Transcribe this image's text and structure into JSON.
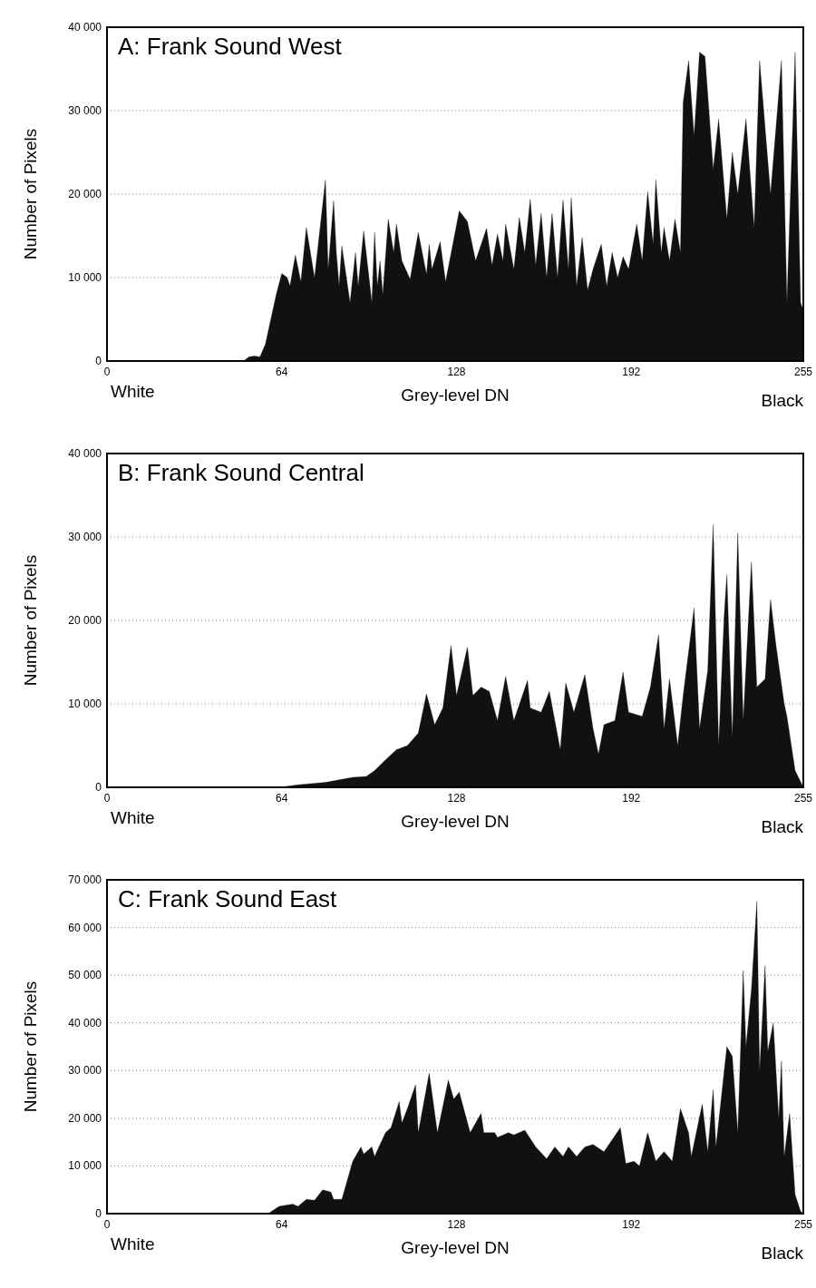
{
  "chart_data": [
    {
      "type": "area",
      "title": "A: Frank Sound West",
      "xlabel": "Grey-level DN",
      "ylabel": "Number of Pixels",
      "annotations": [
        "White",
        "Black"
      ],
      "xlim": [
        0,
        255
      ],
      "xticks": [
        0,
        64,
        128,
        192,
        255
      ],
      "ylim": [
        0,
        40000
      ],
      "yticks": [
        {
          "value": 0,
          "label": "0"
        },
        {
          "value": 10000,
          "label": "10 000"
        },
        {
          "value": 20000,
          "label": "20 000"
        },
        {
          "value": 30000,
          "label": "30 000"
        },
        {
          "value": 40000,
          "label": "40 000"
        }
      ],
      "grid": "y",
      "series": [
        {
          "color": "#111111",
          "x": [
            0,
            50,
            52,
            54,
            56,
            58,
            60,
            62,
            64,
            66,
            67,
            69,
            71,
            73,
            76,
            80,
            81,
            83,
            84,
            85,
            86,
            89,
            91,
            92,
            94,
            97,
            98,
            99,
            100,
            101,
            103,
            105,
            106,
            108,
            111,
            114,
            117,
            118,
            119,
            122,
            124,
            129,
            132,
            135,
            139,
            141,
            143,
            145,
            146,
            149,
            151,
            153,
            155,
            157,
            159,
            161,
            163,
            165,
            167,
            169,
            170,
            172,
            174,
            176,
            178,
            181,
            183,
            185,
            187,
            189,
            191,
            194,
            196,
            198,
            200,
            201,
            203,
            204,
            206,
            208,
            210,
            211,
            213,
            215,
            217,
            219,
            222,
            224,
            227,
            229,
            231,
            234,
            237,
            239,
            243,
            247,
            249,
            252,
            254,
            255
          ],
          "values": [
            0,
            0,
            500,
            600,
            500,
            2000,
            5000,
            8000,
            10500,
            10000,
            9000,
            12700,
            9500,
            16000,
            10000,
            21700,
            11000,
            19200,
            13000,
            9000,
            13800,
            7000,
            13000,
            9000,
            15600,
            7000,
            15400,
            9000,
            12000,
            8000,
            17000,
            13000,
            16400,
            12000,
            9800,
            15400,
            10400,
            14000,
            11000,
            14300,
            9500,
            18000,
            16700,
            12000,
            15900,
            11500,
            15200,
            12000,
            16400,
            11000,
            17200,
            13000,
            19400,
            11500,
            17700,
            10000,
            17700,
            10000,
            19300,
            11000,
            19600,
            9000,
            14800,
            8500,
            11000,
            14000,
            9000,
            13000,
            10000,
            12500,
            11000,
            16400,
            12000,
            20300,
            14000,
            21700,
            13000,
            16000,
            12000,
            17000,
            13000,
            31000,
            36000,
            27000,
            37000,
            36500,
            23000,
            29000,
            17000,
            25000,
            20000,
            29000,
            16000,
            36000,
            20000,
            36000,
            7000,
            37000,
            7000,
            6000
          ]
        }
      ]
    },
    {
      "type": "area",
      "title": "B: Frank Sound Central",
      "xlabel": "Grey-level DN",
      "ylabel": "Number of Pixels",
      "annotations": [
        "White",
        "Black"
      ],
      "xlim": [
        0,
        255
      ],
      "xticks": [
        0,
        64,
        128,
        192,
        255
      ],
      "ylim": [
        0,
        40000
      ],
      "yticks": [
        {
          "value": 0,
          "label": "0"
        },
        {
          "value": 10000,
          "label": "10 000"
        },
        {
          "value": 20000,
          "label": "20 000"
        },
        {
          "value": 30000,
          "label": "30 000"
        },
        {
          "value": 40000,
          "label": "40 000"
        }
      ],
      "grid": "y",
      "series": [
        {
          "color": "#111111",
          "x": [
            0,
            63,
            70,
            80,
            90,
            95,
            98,
            102,
            106,
            110,
            114,
            117,
            120,
            123,
            126,
            128,
            132,
            134,
            137,
            140,
            143,
            146,
            149,
            154,
            155,
            159,
            162,
            164,
            166,
            168,
            171,
            175,
            178,
            180,
            182,
            186,
            189,
            191,
            196,
            199,
            202,
            204,
            206,
            209,
            211,
            215,
            217,
            220,
            222,
            224,
            226,
            227,
            229,
            231,
            233,
            236,
            238,
            241,
            243,
            245,
            248,
            249,
            252,
            255
          ],
          "values": [
            0,
            0,
            300,
            600,
            1200,
            1300,
            2000,
            3300,
            4500,
            5000,
            6500,
            11200,
            7500,
            9500,
            17000,
            11000,
            16800,
            11000,
            12000,
            11500,
            8000,
            13300,
            8000,
            12800,
            9500,
            9000,
            11500,
            8000,
            4500,
            12500,
            9000,
            13500,
            7000,
            4000,
            7500,
            8000,
            13800,
            9000,
            8500,
            12000,
            18300,
            7000,
            13000,
            5000,
            11000,
            21500,
            7000,
            14000,
            31500,
            5000,
            20500,
            25500,
            6000,
            30500,
            8000,
            27000,
            12000,
            13000,
            22500,
            17000,
            10000,
            8500,
            2000,
            0
          ]
        }
      ]
    },
    {
      "type": "area",
      "title": "C: Frank Sound East",
      "xlabel": "Grey-level DN",
      "ylabel": "Number of Pixels",
      "annotations": [
        "White",
        "Black"
      ],
      "xlim": [
        0,
        255
      ],
      "xticks": [
        0,
        64,
        128,
        192,
        255
      ],
      "ylim": [
        0,
        70000
      ],
      "yticks": [
        {
          "value": 0,
          "label": "0"
        },
        {
          "value": 10000,
          "label": "10 000"
        },
        {
          "value": 20000,
          "label": "20 000"
        },
        {
          "value": 30000,
          "label": "30 000"
        },
        {
          "value": 40000,
          "label": "40 000"
        },
        {
          "value": 50000,
          "label": "50 000"
        },
        {
          "value": 60000,
          "label": "60 000"
        },
        {
          "value": 70000,
          "label": "70 000"
        }
      ],
      "grid": "y",
      "series": [
        {
          "color": "#111111",
          "x": [
            0,
            59,
            63,
            68,
            70,
            73,
            76,
            79,
            82,
            83,
            86,
            90,
            93,
            94,
            97,
            98,
            102,
            104,
            107,
            108,
            110,
            113,
            114,
            118,
            121,
            125,
            127,
            129,
            133,
            137,
            138,
            142,
            143,
            147,
            149,
            153,
            157,
            161,
            164,
            167,
            169,
            172,
            175,
            178,
            182,
            188,
            190,
            193,
            195,
            198,
            201,
            204,
            207,
            210,
            213,
            214,
            218,
            220,
            222,
            223,
            227,
            229,
            231,
            233,
            234,
            236,
            238,
            239,
            241,
            242,
            244,
            246,
            247,
            248,
            250,
            252,
            254,
            255
          ],
          "values": [
            0,
            0,
            1500,
            2000,
            1500,
            3000,
            2800,
            5000,
            4500,
            3000,
            3000,
            11000,
            14000,
            12500,
            14000,
            12000,
            17000,
            18000,
            23500,
            19000,
            22000,
            27000,
            17000,
            29500,
            17000,
            28000,
            24000,
            25500,
            17000,
            21000,
            17000,
            17000,
            16000,
            17000,
            16500,
            17500,
            14000,
            11500,
            14000,
            12000,
            14000,
            12000,
            14000,
            14500,
            13000,
            18000,
            10500,
            11000,
            10000,
            17000,
            11000,
            13000,
            11000,
            22000,
            17000,
            12000,
            23000,
            13000,
            26000,
            14000,
            35000,
            33000,
            17000,
            51000,
            35000,
            47000,
            65500,
            30000,
            52000,
            34000,
            40000,
            20000,
            32000,
            12000,
            21000,
            4000,
            500,
            0
          ]
        }
      ]
    }
  ]
}
